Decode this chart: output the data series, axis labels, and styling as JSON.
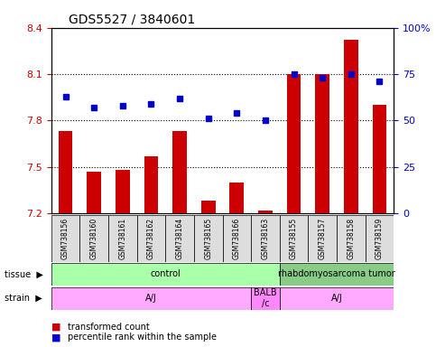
{
  "title": "GDS5527 / 3840601",
  "samples": [
    "GSM738156",
    "GSM738160",
    "GSM738161",
    "GSM738162",
    "GSM738164",
    "GSM738165",
    "GSM738166",
    "GSM738163",
    "GSM738155",
    "GSM738157",
    "GSM738158",
    "GSM738159"
  ],
  "red_values": [
    7.73,
    7.47,
    7.48,
    7.57,
    7.73,
    7.28,
    7.4,
    7.22,
    8.1,
    8.1,
    8.32,
    7.9
  ],
  "blue_values": [
    63,
    57,
    58,
    59,
    62,
    51,
    54,
    50,
    75,
    73,
    75,
    71
  ],
  "ymin": 7.2,
  "ymax": 8.4,
  "y2min": 0,
  "y2max": 100,
  "yticks": [
    7.2,
    7.5,
    7.8,
    8.1,
    8.4
  ],
  "y2ticks": [
    0,
    25,
    50,
    75,
    100
  ],
  "y2tick_labels": [
    "0",
    "25",
    "50",
    "75",
    "100%"
  ],
  "bar_color": "#cc0000",
  "dot_color": "#0000cc",
  "tissue_labels": [
    {
      "text": "control",
      "start": 0,
      "end": 7,
      "color": "#aaffaa"
    },
    {
      "text": "rhabdomyosarcoma tumor",
      "start": 8,
      "end": 11,
      "color": "#88cc88"
    }
  ],
  "strain_labels": [
    {
      "text": "A/J",
      "start": 0,
      "end": 6,
      "color": "#ffaaff"
    },
    {
      "text": "BALB\n/c",
      "start": 7,
      "end": 7,
      "color": "#ff88ff"
    },
    {
      "text": "A/J",
      "start": 8,
      "end": 11,
      "color": "#ffaaff"
    }
  ],
  "legend_items": [
    {
      "label": "transformed count",
      "color": "#cc0000"
    },
    {
      "label": "percentile rank within the sample",
      "color": "#0000cc"
    }
  ],
  "ylabel_color_left": "#cc0000",
  "ylabel_color_right": "#0000cc",
  "grid_color": "black",
  "sample_box_color": "#dddddd",
  "tissue_label": "tissue",
  "strain_label": "strain"
}
